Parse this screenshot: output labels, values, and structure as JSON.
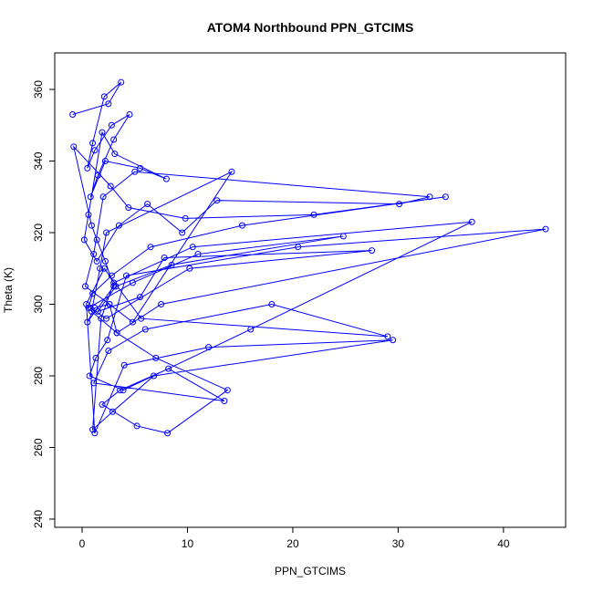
{
  "chart_data": {
    "type": "line",
    "title": "ATOM4 Northbound PPN_GTCIMS",
    "x_label": "PPN_GTCIMS",
    "y_label": "Theta (K)",
    "color": "#0000ff",
    "markers": true,
    "xlim": [
      -2.6,
      45.9
    ],
    "ylim": [
      237.7,
      370.2
    ],
    "xticks": [
      0,
      10,
      20,
      30,
      40
    ],
    "yticks": [
      240,
      260,
      280,
      300,
      320,
      340,
      360
    ],
    "x": [
      -0.9,
      2.5,
      3.7,
      2.1,
      1.0,
      0.5,
      1.2,
      2.8,
      4.5,
      3.0,
      1.5,
      0.8,
      2.2,
      5.5,
      8.0,
      3.1,
      1.9,
      0.6,
      0.2,
      1.4,
      3.5,
      6.2,
      9.5,
      12.8,
      30.1,
      33.0,
      5.0,
      2.0,
      1.1,
      0.3,
      2.6,
      4.8,
      14.2,
      2.3,
      1.7,
      0.9,
      3.3,
      7.5,
      44.0,
      20.5,
      4.2,
      2.4,
      1.3,
      0.7,
      3.9,
      16.0,
      37.0,
      10.5,
      3.0,
      1.8,
      1.0,
      2.9,
      6.8,
      29.5,
      12.0,
      4.0,
      1.2,
      0.4,
      2.1,
      5.6,
      29.0,
      18.0,
      6.0,
      2.5,
      1.1,
      13.5,
      8.2,
      3.6,
      1.9,
      5.2,
      8.1,
      13.8,
      7.0,
      3.3,
      2.6,
      1.2,
      0.5,
      3.0,
      2.2,
      1.4,
      0.9,
      -0.8,
      2.7,
      4.4,
      9.8,
      22.0,
      34.5,
      15.2,
      6.5,
      2.8,
      1.0,
      0.6,
      4.8,
      11.0,
      24.8,
      8.5,
      3.2,
      1.5,
      5.5,
      7.8,
      27.5,
      10.2,
      2.3,
      0.8
    ],
    "values": [
      353,
      356,
      362,
      358,
      345,
      338,
      343,
      350,
      353,
      346,
      336,
      330,
      340,
      338,
      335,
      342,
      348,
      325,
      318,
      312,
      322,
      328,
      320,
      329,
      328,
      330,
      337,
      330,
      314,
      305,
      300,
      295,
      337,
      320,
      310,
      298,
      292,
      300,
      321,
      316,
      308,
      290,
      285,
      280,
      276,
      293,
      323,
      316,
      306,
      296,
      265,
      270,
      280,
      290,
      288,
      283,
      264,
      300,
      310,
      296,
      291,
      300,
      293,
      287,
      278,
      273,
      282,
      276,
      272,
      266,
      264,
      276,
      285,
      292,
      300,
      299,
      295,
      305,
      312,
      318,
      322,
      344,
      333,
      327,
      324,
      325,
      330,
      322,
      316,
      308,
      303,
      299,
      306,
      314,
      319,
      311,
      305,
      298,
      302,
      313,
      315,
      310,
      296,
      299
    ]
  }
}
